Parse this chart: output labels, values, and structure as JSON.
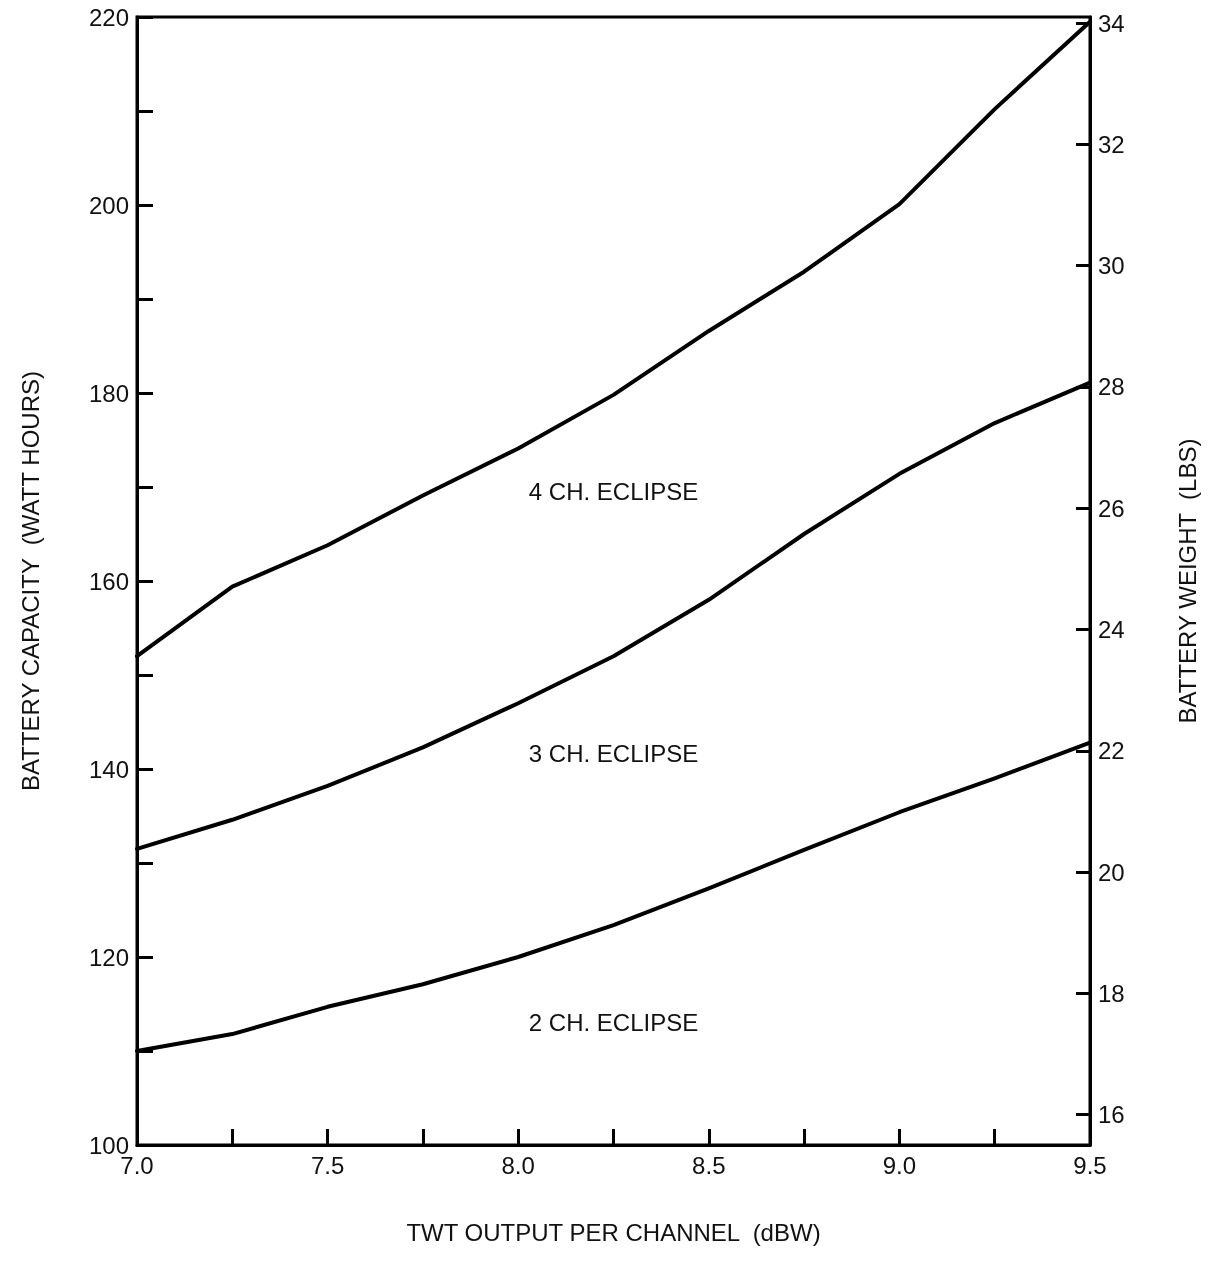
{
  "chart_data": {
    "type": "line",
    "xlabel": "TWT OUTPUT PER CHANNEL  (dBW)",
    "ylabel": "BATTERY CAPACITY  (WATT HOURS)",
    "y2label": "BATTERY WEIGHT  (LBS)",
    "x": [
      7.0,
      7.25,
      7.5,
      7.75,
      8.0,
      8.25,
      8.5,
      8.75,
      9.0,
      9.25,
      9.5
    ],
    "series": [
      {
        "name": "4 CH. ECLIPSE",
        "color": "#000000",
        "values": [
          152,
          159.4,
          163.8,
          169.1,
          174.1,
          179.8,
          186.6,
          192.9,
          200.1,
          210.2,
          219.5
        ]
      },
      {
        "name": "3 CH. ECLIPSE",
        "color": "#000000",
        "values": [
          131.5,
          134.6,
          138.2,
          142.3,
          147,
          152,
          158,
          165,
          171.4,
          176.8,
          181.1
        ]
      },
      {
        "name": "2 CH. ECLIPSE",
        "color": "#000000",
        "values": [
          110,
          111.8,
          114.7,
          117.1,
          120,
          123.4,
          127.3,
          131.4,
          135.4,
          139,
          142.8
        ]
      }
    ],
    "xlim": [
      7.0,
      9.5
    ],
    "xticks": [
      {
        "value": 7.0,
        "label": "7.0"
      },
      {
        "value": 7.25,
        "label": null
      },
      {
        "value": 7.5,
        "label": "7.5"
      },
      {
        "value": 7.75,
        "label": null
      },
      {
        "value": 8.0,
        "label": "8.0"
      },
      {
        "value": 8.25,
        "label": null
      },
      {
        "value": 8.5,
        "label": "8.5"
      },
      {
        "value": 8.75,
        "label": null
      },
      {
        "value": 9.0,
        "label": "9.0"
      },
      {
        "value": 9.25,
        "label": null
      },
      {
        "value": 9.5,
        "label": "9.5"
      }
    ],
    "ylim": [
      100,
      220
    ],
    "yticks": [
      100,
      {
        "value": 110,
        "label": null
      },
      120,
      {
        "value": 130,
        "label": null
      },
      140,
      {
        "value": 150,
        "label": null
      },
      160,
      {
        "value": 170,
        "label": null
      },
      180,
      {
        "value": 190,
        "label": null
      },
      200,
      {
        "value": 210,
        "label": null
      },
      220
    ],
    "y2lim": [
      15.5,
      34.1
    ],
    "y2ticks": [
      16,
      18,
      20,
      22,
      24,
      26,
      28,
      30,
      32,
      34
    ],
    "grid": false,
    "legend": false,
    "marker": "none",
    "line_style": "solid"
  }
}
